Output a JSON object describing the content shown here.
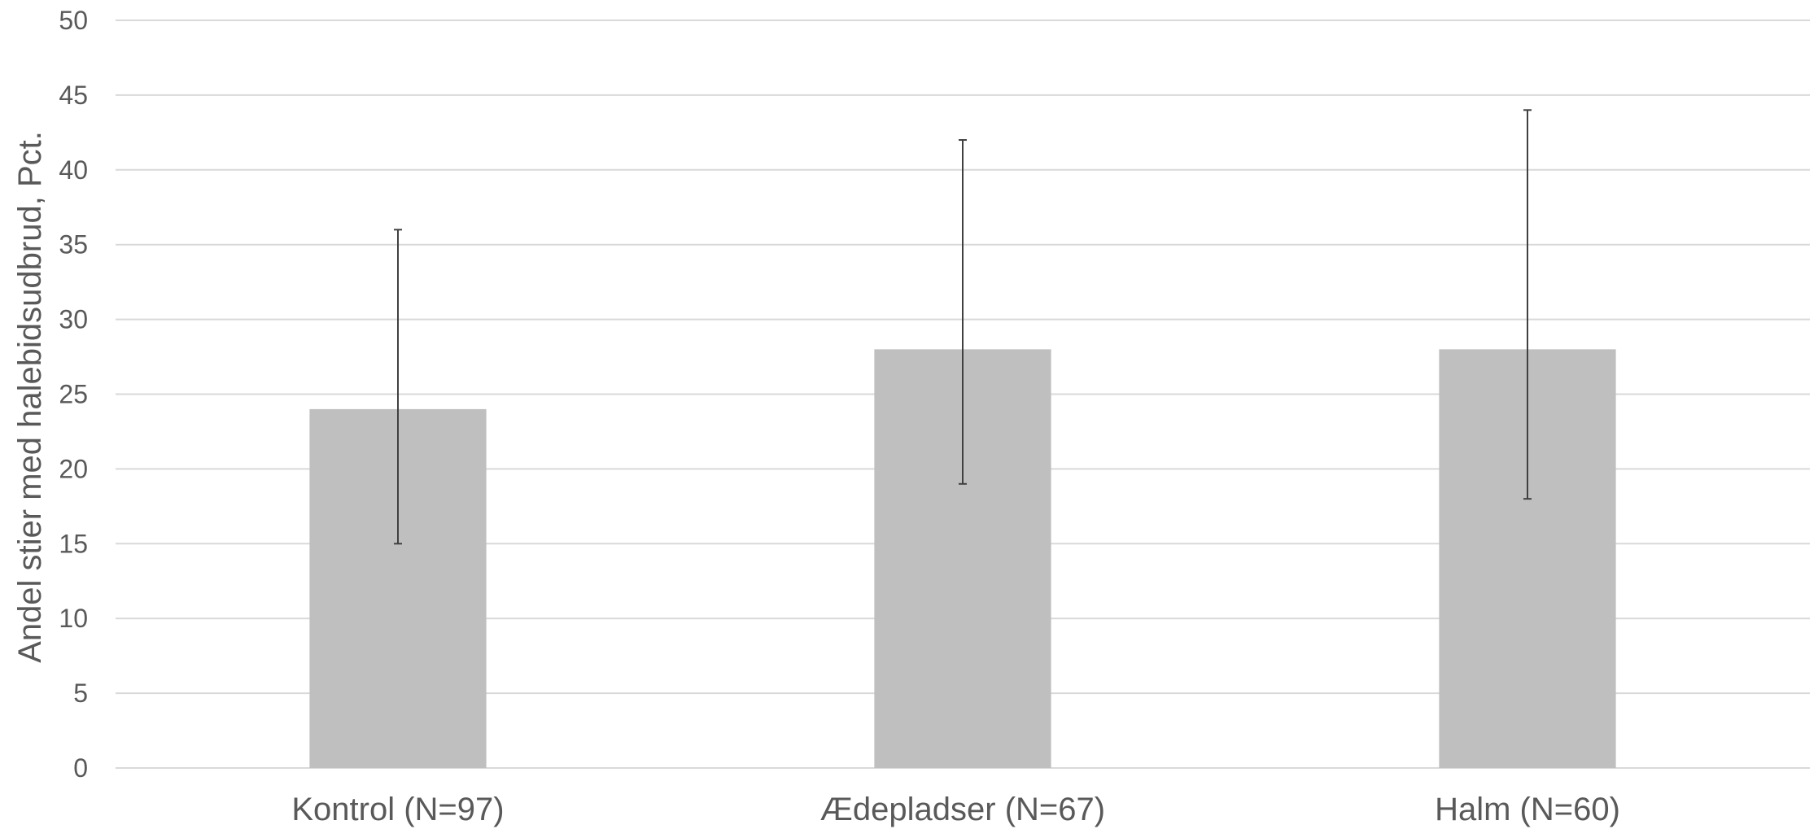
{
  "chart_data": {
    "type": "bar",
    "categories": [
      "Kontrol (N=97)",
      "Ædepladser (N=67)",
      "Halm (N=60)"
    ],
    "values": [
      24,
      28,
      28
    ],
    "error_low": [
      15,
      19,
      18
    ],
    "error_high": [
      36,
      42,
      44
    ],
    "title": "",
    "xlabel": "",
    "ylabel": "Andel stier med halebidsudbrud, Pct.",
    "ylim": [
      0,
      50
    ],
    "yticks": [
      0,
      5,
      10,
      15,
      20,
      25,
      30,
      35,
      40,
      45,
      50
    ],
    "grid": true,
    "legend": "none",
    "bar_color": "#bfbfbf",
    "grid_color": "#d9d9d9",
    "error_color": "#404040"
  }
}
